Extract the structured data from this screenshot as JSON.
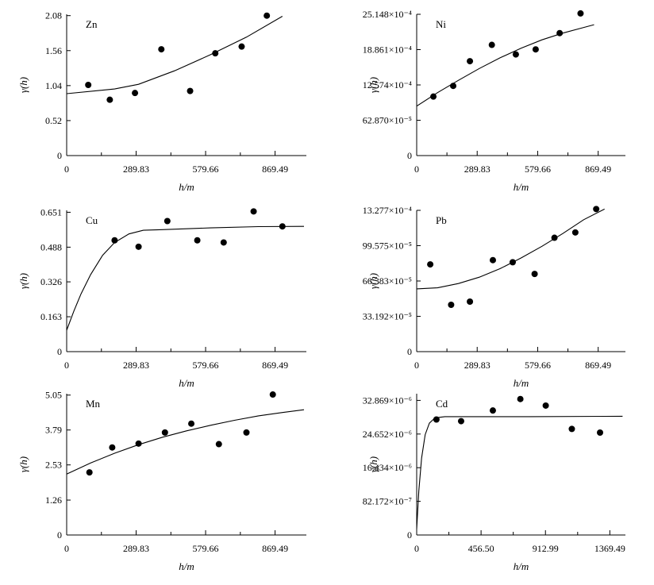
{
  "chart_data": [
    {
      "type": "scatter",
      "label": "Zn",
      "xlabel": "h/m",
      "ylabel": "γ(h)",
      "xlim": [
        0,
        1000
      ],
      "ylim": [
        0,
        2.1
      ],
      "xticks": [
        0,
        289.83,
        579.66,
        869.49
      ],
      "xtick_labels": [
        "0",
        "289.83",
        "579.66",
        "869.49"
      ],
      "yticks": [
        0,
        0.52,
        1.04,
        1.56,
        2.08
      ],
      "ytick_labels": [
        "0",
        "0.52",
        "1.04",
        "1.56",
        "2.08"
      ],
      "points": [
        {
          "x": 90,
          "y": 1.05
        },
        {
          "x": 180,
          "y": 0.83
        },
        {
          "x": 285,
          "y": 0.93
        },
        {
          "x": 395,
          "y": 1.58
        },
        {
          "x": 515,
          "y": 0.96
        },
        {
          "x": 620,
          "y": 1.52
        },
        {
          "x": 730,
          "y": 1.62
        },
        {
          "x": 835,
          "y": 2.08
        }
      ],
      "model_curve": [
        {
          "x": 0,
          "y": 0.92
        },
        {
          "x": 200,
          "y": 0.99
        },
        {
          "x": 300,
          "y": 1.06
        },
        {
          "x": 450,
          "y": 1.26
        },
        {
          "x": 600,
          "y": 1.5
        },
        {
          "x": 750,
          "y": 1.76
        },
        {
          "x": 900,
          "y": 2.07
        }
      ]
    },
    {
      "type": "scatter",
      "label": "Ni",
      "xlabel": "h/m",
      "ylabel": "γ(h)",
      "xlim": [
        0,
        1000
      ],
      "ylim": [
        0,
        0.0025148
      ],
      "xticks": [
        0,
        289.83,
        579.66,
        869.49
      ],
      "xtick_labels": [
        "0",
        "289.83",
        "579.66",
        "869.49"
      ],
      "yticks": [
        0,
        0.0006287,
        0.0012574,
        0.0018861,
        0.0025148
      ],
      "ytick_labels": [
        "0",
        "62.870×10⁻⁵",
        "12.574×10⁻⁴",
        "18.861×10⁻⁴",
        "25.148×10⁻⁴"
      ],
      "points": [
        {
          "x": 80,
          "y": 0.00105
        },
        {
          "x": 175,
          "y": 0.00124
        },
        {
          "x": 255,
          "y": 0.00168
        },
        {
          "x": 360,
          "y": 0.00197
        },
        {
          "x": 475,
          "y": 0.0018
        },
        {
          "x": 570,
          "y": 0.00189
        },
        {
          "x": 685,
          "y": 0.00218
        },
        {
          "x": 785,
          "y": 0.00253
        }
      ],
      "model_curve": [
        {
          "x": 0,
          "y": 0.00088
        },
        {
          "x": 100,
          "y": 0.00112
        },
        {
          "x": 200,
          "y": 0.00134
        },
        {
          "x": 300,
          "y": 0.00155
        },
        {
          "x": 400,
          "y": 0.00174
        },
        {
          "x": 500,
          "y": 0.00191
        },
        {
          "x": 600,
          "y": 0.00206
        },
        {
          "x": 700,
          "y": 0.00218
        },
        {
          "x": 800,
          "y": 0.00228
        },
        {
          "x": 850,
          "y": 0.00233
        }
      ]
    },
    {
      "type": "scatter",
      "label": "Cu",
      "xlabel": "h/m",
      "ylabel": "γ(h)",
      "xlim": [
        0,
        1000
      ],
      "ylim": [
        0,
        0.66
      ],
      "xticks": [
        0,
        289.83,
        579.66,
        869.49
      ],
      "xtick_labels": [
        "0",
        "289.83",
        "579.66",
        "869.49"
      ],
      "yticks": [
        0,
        0.163,
        0.326,
        0.488,
        0.651
      ],
      "ytick_labels": [
        "0",
        "0.163",
        "0.326",
        "0.488",
        "0.651"
      ],
      "points": [
        {
          "x": 200,
          "y": 0.52
        },
        {
          "x": 300,
          "y": 0.49
        },
        {
          "x": 420,
          "y": 0.61
        },
        {
          "x": 545,
          "y": 0.52
        },
        {
          "x": 655,
          "y": 0.51
        },
        {
          "x": 780,
          "y": 0.655
        },
        {
          "x": 900,
          "y": 0.585
        }
      ],
      "model_curve": [
        {
          "x": 0,
          "y": 0.1
        },
        {
          "x": 30,
          "y": 0.19
        },
        {
          "x": 60,
          "y": 0.27
        },
        {
          "x": 100,
          "y": 0.36
        },
        {
          "x": 150,
          "y": 0.45
        },
        {
          "x": 200,
          "y": 0.51
        },
        {
          "x": 260,
          "y": 0.55
        },
        {
          "x": 320,
          "y": 0.567
        },
        {
          "x": 400,
          "y": 0.57
        },
        {
          "x": 600,
          "y": 0.578
        },
        {
          "x": 800,
          "y": 0.584
        },
        {
          "x": 990,
          "y": 0.585
        }
      ]
    },
    {
      "type": "scatter",
      "label": "Pb",
      "xlabel": "h/m",
      "ylabel": "γ(h)",
      "xlim": [
        0,
        1000
      ],
      "ylim": [
        0,
        0.0013277
      ],
      "xticks": [
        0,
        289.83,
        579.66,
        869.49
      ],
      "xtick_labels": [
        "0",
        "289.83",
        "579.66",
        "869.49"
      ],
      "yticks": [
        0,
        0.00033192,
        0.00066383,
        0.00099575,
        0.0013277
      ],
      "ytick_labels": [
        "0",
        "33.192×10⁻⁵",
        "66.383×10⁻⁵",
        "99.575×10⁻⁵",
        "13.277×10⁻⁴"
      ],
      "points": [
        {
          "x": 65,
          "y": 0.00082
        },
        {
          "x": 165,
          "y": 0.00044
        },
        {
          "x": 255,
          "y": 0.00047
        },
        {
          "x": 365,
          "y": 0.00086
        },
        {
          "x": 460,
          "y": 0.00084
        },
        {
          "x": 565,
          "y": 0.00073
        },
        {
          "x": 660,
          "y": 0.00107
        },
        {
          "x": 760,
          "y": 0.00112
        },
        {
          "x": 860,
          "y": 0.00134
        }
      ],
      "model_curve": [
        {
          "x": 0,
          "y": 0.00059
        },
        {
          "x": 100,
          "y": 0.0006
        },
        {
          "x": 200,
          "y": 0.00064
        },
        {
          "x": 300,
          "y": 0.0007
        },
        {
          "x": 400,
          "y": 0.00078
        },
        {
          "x": 500,
          "y": 0.00088
        },
        {
          "x": 600,
          "y": 0.00099
        },
        {
          "x": 700,
          "y": 0.00111
        },
        {
          "x": 800,
          "y": 0.00124
        },
        {
          "x": 900,
          "y": 0.00134
        }
      ]
    },
    {
      "type": "scatter",
      "label": "Mn",
      "xlabel": "h/m",
      "ylabel": "γ(h)",
      "xlim": [
        0,
        1000
      ],
      "ylim": [
        0,
        5.1
      ],
      "xticks": [
        0,
        289.83,
        579.66,
        869.49
      ],
      "xtick_labels": [
        "0",
        "289.83",
        "579.66",
        "869.49"
      ],
      "yticks": [
        0,
        1.26,
        2.53,
        3.79,
        5.05
      ],
      "ytick_labels": [
        "0",
        "1.26",
        "2.53",
        "3.79",
        "5.05"
      ],
      "points": [
        {
          "x": 95,
          "y": 2.26
        },
        {
          "x": 190,
          "y": 3.16
        },
        {
          "x": 300,
          "y": 3.3
        },
        {
          "x": 410,
          "y": 3.7
        },
        {
          "x": 520,
          "y": 4.02
        },
        {
          "x": 635,
          "y": 3.28
        },
        {
          "x": 750,
          "y": 3.7
        },
        {
          "x": 860,
          "y": 5.07
        }
      ],
      "model_curve": [
        {
          "x": 0,
          "y": 2.2
        },
        {
          "x": 100,
          "y": 2.6
        },
        {
          "x": 200,
          "y": 2.95
        },
        {
          "x": 300,
          "y": 3.26
        },
        {
          "x": 400,
          "y": 3.53
        },
        {
          "x": 500,
          "y": 3.76
        },
        {
          "x": 600,
          "y": 3.96
        },
        {
          "x": 700,
          "y": 4.14
        },
        {
          "x": 800,
          "y": 4.3
        },
        {
          "x": 900,
          "y": 4.42
        },
        {
          "x": 990,
          "y": 4.52
        }
      ]
    },
    {
      "type": "scatter",
      "label": "Cd",
      "xlabel": "h/m",
      "ylabel": "γ(h)",
      "xlim": [
        0,
        1480
      ],
      "ylim": [
        0,
        3.45e-05
      ],
      "xticks": [
        0,
        456.5,
        912.99,
        1369.49
      ],
      "xtick_labels": [
        "0",
        "456.50",
        "912.99",
        "1369.49"
      ],
      "yticks": [
        0,
        8.2172e-06,
        1.6434e-05,
        2.4652e-05,
        3.2869e-05
      ],
      "ytick_labels": [
        "0",
        "82.172×10⁻⁷",
        "16.434×10⁻⁶",
        "24.652×10⁻⁶",
        "32.869×10⁻⁶"
      ],
      "points": [
        {
          "x": 140,
          "y": 2.82e-05
        },
        {
          "x": 315,
          "y": 2.78e-05
        },
        {
          "x": 540,
          "y": 3.04e-05
        },
        {
          "x": 735,
          "y": 3.32e-05
        },
        {
          "x": 915,
          "y": 3.16e-05
        },
        {
          "x": 1100,
          "y": 2.59e-05
        },
        {
          "x": 1300,
          "y": 2.5e-05
        }
      ],
      "model_curve": [
        {
          "x": 0,
          "y": 1.5e-06
        },
        {
          "x": 15,
          "y": 1.08e-05
        },
        {
          "x": 35,
          "y": 1.88e-05
        },
        {
          "x": 60,
          "y": 2.45e-05
        },
        {
          "x": 90,
          "y": 2.73e-05
        },
        {
          "x": 130,
          "y": 2.86e-05
        },
        {
          "x": 200,
          "y": 2.89e-05
        },
        {
          "x": 800,
          "y": 2.89e-05
        },
        {
          "x": 1460,
          "y": 2.9e-05
        }
      ]
    }
  ]
}
